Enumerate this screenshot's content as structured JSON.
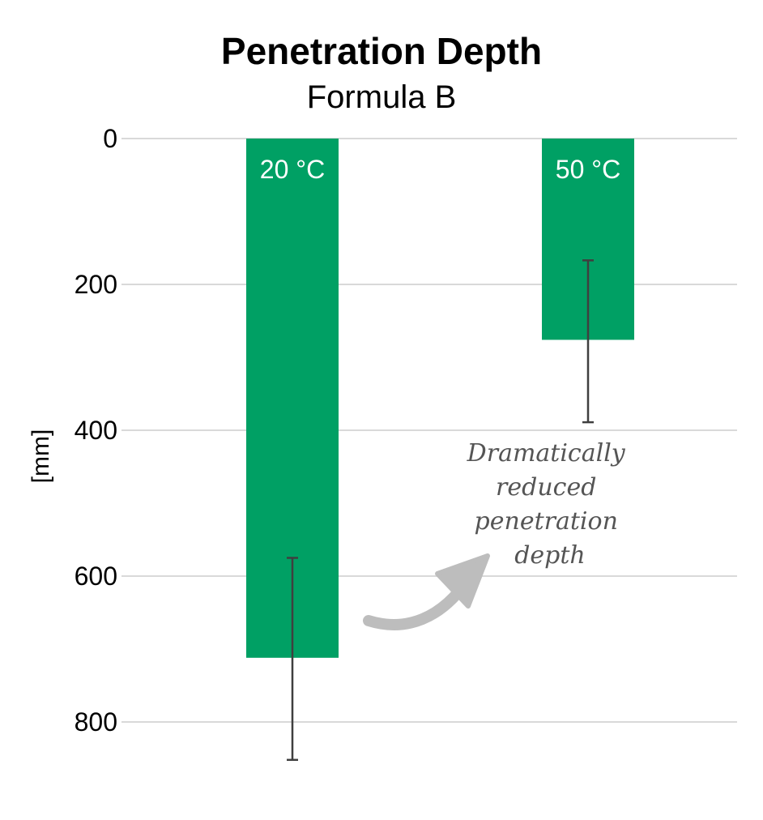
{
  "chart_data": {
    "type": "bar",
    "title": "Penetration Depth",
    "subtitle": "Formula B",
    "ylabel": "[mm]",
    "xlabel": "",
    "ylim": [
      0,
      800
    ],
    "y_axis_inverted": true,
    "y_ticks": [
      "0",
      "200",
      "400",
      "600",
      "800"
    ],
    "grid": true,
    "categories": [
      "20 °C",
      "50 °C"
    ],
    "values": [
      712,
      276
    ],
    "error_bars": [
      {
        "low": 575,
        "high": 852
      },
      {
        "low": 167,
        "high": 389
      }
    ],
    "bar_color": "#00a064",
    "annotation": "Dramatically reduced penetration depth"
  }
}
